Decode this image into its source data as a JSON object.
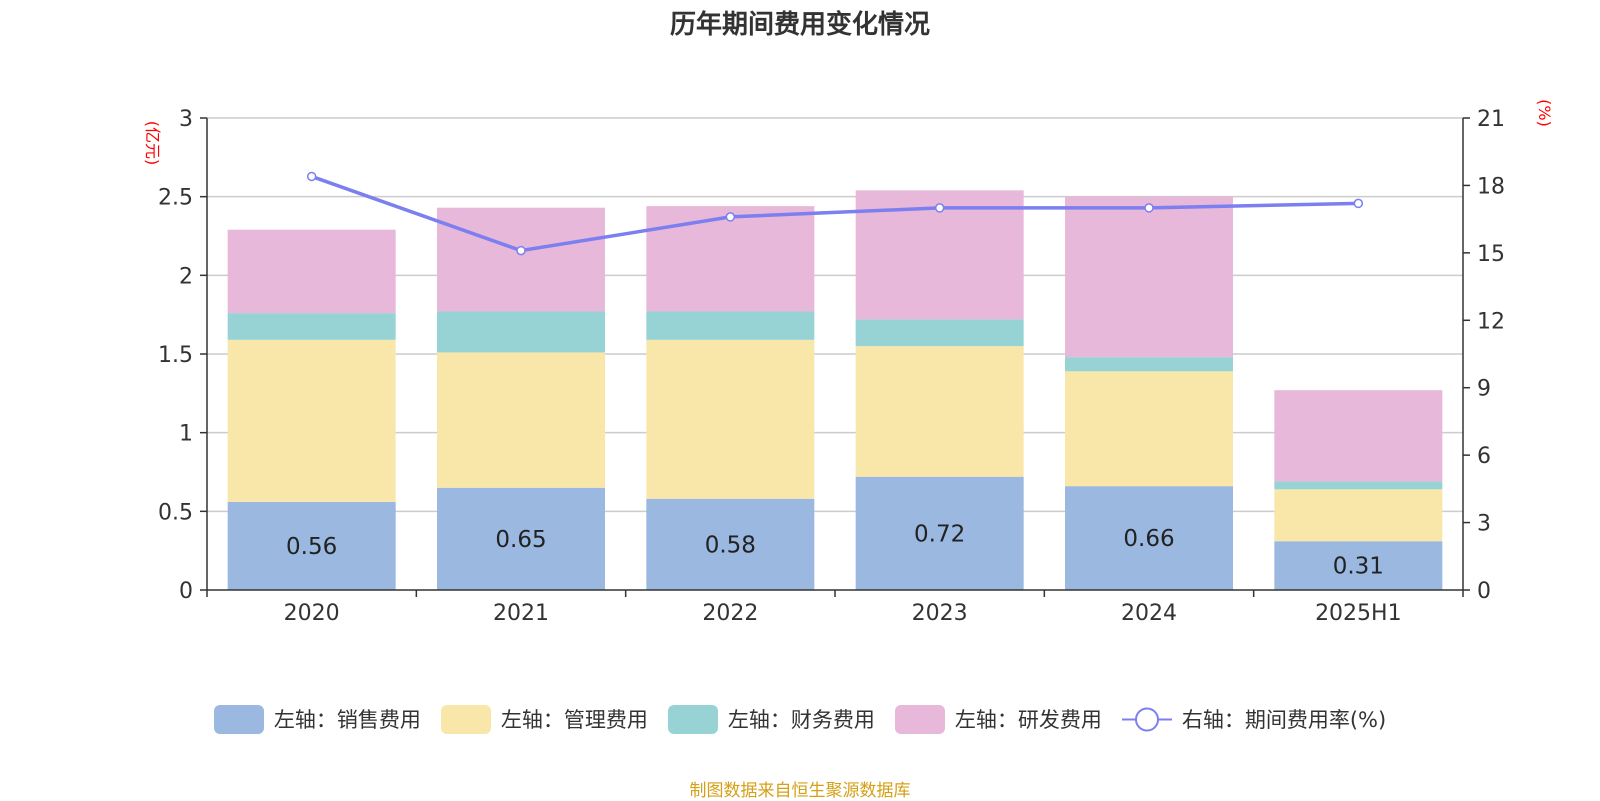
{
  "chart_data": {
    "type": "bar",
    "stacked": true,
    "title": "历年期间费用变化情况",
    "categories": [
      "2020",
      "2021",
      "2022",
      "2023",
      "2024",
      "2025H1"
    ],
    "left_axis": {
      "unit": "(亿元)",
      "ylim": [
        0,
        3
      ],
      "ticks": [
        "0",
        "0.5",
        "1",
        "1.5",
        "2",
        "2.5",
        "3"
      ]
    },
    "right_axis": {
      "unit": "(%)",
      "ylim": [
        0,
        21
      ],
      "ticks": [
        "0",
        "3",
        "6",
        "9",
        "12",
        "15",
        "18",
        "21"
      ]
    },
    "series": [
      {
        "name": "左轴：销售费用",
        "type": "bar",
        "axis": "left",
        "color": "#9bb8e1",
        "values": [
          0.56,
          0.65,
          0.58,
          0.72,
          0.66,
          0.31
        ],
        "labels": [
          "0.56",
          "0.65",
          "0.58",
          "0.72",
          "0.66",
          "0.31"
        ]
      },
      {
        "name": "左轴：管理费用",
        "type": "bar",
        "axis": "left",
        "color": "#f8e7a9",
        "values": [
          1.03,
          0.86,
          1.01,
          0.83,
          0.73,
          0.33
        ]
      },
      {
        "name": "左轴：财务费用",
        "type": "bar",
        "axis": "left",
        "color": "#97d3d4",
        "values": [
          0.17,
          0.26,
          0.18,
          0.17,
          0.09,
          0.05
        ]
      },
      {
        "name": "左轴：研发费用",
        "type": "bar",
        "axis": "left",
        "color": "#e7b8d9",
        "values": [
          0.53,
          0.66,
          0.67,
          0.82,
          1.02,
          0.58
        ]
      },
      {
        "name": "右轴：期间费用率(%)",
        "type": "line",
        "axis": "right",
        "color": "#7b7fef",
        "values": [
          18.4,
          15.1,
          16.6,
          17.0,
          17.0,
          17.2
        ]
      }
    ],
    "grid": true,
    "legend_position": "bottom"
  },
  "source_note": "制图数据来自恒生聚源数据库"
}
